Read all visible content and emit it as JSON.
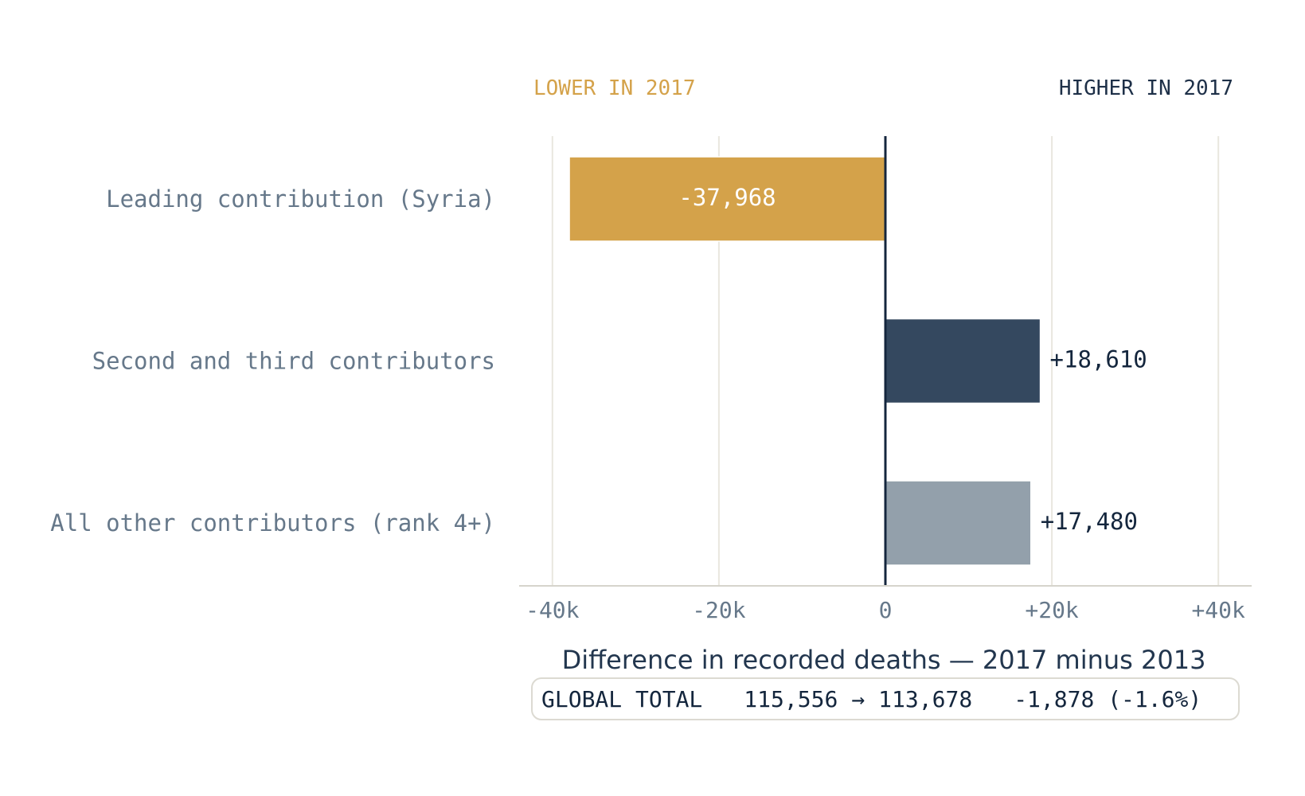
{
  "chart_data": {
    "type": "bar",
    "orientation": "horizontal",
    "categories": [
      "Leading contribution (Syria)",
      "Second and third contributors",
      "All other contributors (rank 4+)"
    ],
    "values": [
      -37968,
      18610,
      17480
    ],
    "value_labels": [
      "-37,968",
      "+18,610",
      "+17,480"
    ],
    "bar_colors": [
      "#d4a24a",
      "#34485f",
      "#93a0ab"
    ],
    "xlabel": "Difference in recorded deaths — 2017 minus 2013",
    "xlim": [
      -44000,
      44000
    ],
    "xticks": [
      -40000,
      -20000,
      0,
      20000,
      40000
    ],
    "xtick_labels": [
      "-40k",
      "-20k",
      "0",
      "+20k",
      "+40k"
    ],
    "grid": true,
    "direction_labels": {
      "left": "LOWER IN 2017",
      "right": "HIGHER IN 2017"
    },
    "summary": {
      "label": "GLOBAL TOTAL",
      "from": "115,556",
      "arrow": "→",
      "to": "113,678",
      "change": "-1,878 (-1.6%)"
    }
  },
  "colors": {
    "lower": "#d4a24a",
    "higher": "#1e3048",
    "category_text": "#66788a",
    "tick_text": "#66788a",
    "grid": "#e9e7df",
    "axis": "#d6d4cc",
    "zero_line": "#14263d",
    "value_text_dark": "#14263d",
    "value_text_light": "#ffffff",
    "title_text": "#22364e"
  }
}
